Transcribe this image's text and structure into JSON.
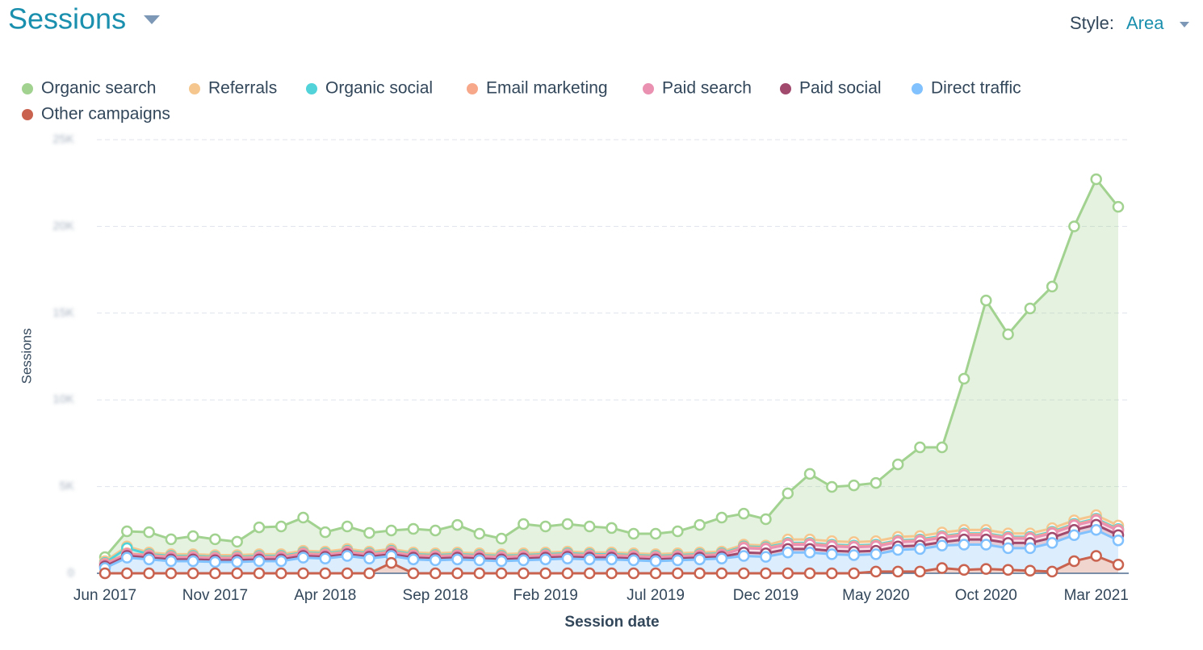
{
  "chart_data": {
    "type": "stacked_area",
    "title": "Sessions",
    "controls": {
      "style_label": "Style:",
      "style_value": "Area"
    },
    "x_label": "Session date",
    "y_label": "Sessions",
    "categories": [
      "Jun 2017",
      null,
      null,
      null,
      null,
      "Nov 2017",
      null,
      null,
      null,
      null,
      "Apr 2018",
      null,
      null,
      null,
      null,
      "Sep 2018",
      null,
      null,
      null,
      null,
      "Feb 2019",
      null,
      null,
      null,
      null,
      "Jul 2019",
      null,
      null,
      null,
      null,
      "Dec 2019",
      null,
      null,
      null,
      null,
      "May 2020",
      null,
      null,
      null,
      null,
      "Oct 2020",
      null,
      null,
      null,
      null,
      "Mar 2021",
      null
    ],
    "ylim": [
      0,
      25000
    ],
    "yticks": [
      0,
      {
        "value": 5000,
        "label": "5K"
      },
      {
        "value": 10000,
        "label": "10K"
      },
      {
        "value": 15000,
        "label": "15K"
      },
      {
        "value": 20000,
        "label": "20K"
      },
      {
        "value": 25000,
        "label": "25K"
      }
    ],
    "grid": true,
    "legend": "top-left",
    "series": [
      {
        "name": "Organic search",
        "color": "#a2d28f",
        "values": [
          230,
          870,
          1170,
          860,
          1040,
          910,
          770,
          1550,
          1600,
          1910,
          1120,
          1300,
          1080,
          1070,
          1360,
          1320,
          1590,
          1130,
          900,
          1690,
          1500,
          1590,
          1500,
          1410,
          1130,
          1180,
          1270,
          1590,
          1960,
          1790,
          1520,
          2660,
          3780,
          3130,
          3270,
          3360,
          4180,
          5110,
          4910,
          8720,
          13230,
          11480,
          12970,
          13930,
          16950,
          19370,
          18380
        ]
      },
      {
        "name": "Referrals",
        "color": "#f5c78e",
        "values": [
          100,
          100,
          100,
          100,
          100,
          100,
          100,
          100,
          100,
          100,
          100,
          100,
          100,
          100,
          100,
          100,
          100,
          100,
          100,
          100,
          100,
          100,
          100,
          100,
          100,
          100,
          100,
          100,
          100,
          100,
          100,
          200,
          200,
          200,
          200,
          200,
          200,
          200,
          200,
          200,
          200,
          200,
          200,
          200,
          200,
          200,
          200
        ]
      },
      {
        "name": "Organic social",
        "color": "#51d3d9",
        "values": [
          50,
          300,
          50,
          50,
          50,
          50,
          50,
          50,
          50,
          50,
          50,
          50,
          50,
          50,
          50,
          50,
          50,
          50,
          50,
          50,
          50,
          50,
          50,
          50,
          50,
          50,
          50,
          50,
          50,
          50,
          50,
          50,
          50,
          50,
          50,
          50,
          50,
          50,
          50,
          50,
          50,
          50,
          50,
          50,
          50,
          50,
          50
        ]
      },
      {
        "name": "Email marketing",
        "color": "#f8a88a",
        "values": [
          50,
          50,
          50,
          50,
          50,
          50,
          50,
          50,
          50,
          50,
          50,
          50,
          50,
          50,
          50,
          50,
          50,
          50,
          50,
          50,
          50,
          50,
          50,
          50,
          50,
          50,
          50,
          50,
          50,
          50,
          50,
          50,
          50,
          50,
          50,
          50,
          50,
          50,
          50,
          50,
          50,
          50,
          50,
          50,
          50,
          50,
          50
        ]
      },
      {
        "name": "Paid search",
        "color": "#ea90b1",
        "values": [
          100,
          100,
          100,
          100,
          100,
          100,
          100,
          100,
          100,
          100,
          100,
          100,
          100,
          100,
          100,
          100,
          100,
          100,
          100,
          100,
          100,
          100,
          100,
          100,
          100,
          100,
          100,
          100,
          100,
          250,
          250,
          250,
          250,
          250,
          250,
          250,
          250,
          250,
          250,
          250,
          250,
          250,
          250,
          250,
          250,
          250,
          250
        ]
      },
      {
        "name": "Paid social",
        "color": "#a24a6e",
        "values": [
          100,
          100,
          100,
          100,
          100,
          100,
          100,
          100,
          100,
          100,
          100,
          100,
          100,
          100,
          100,
          100,
          100,
          100,
          100,
          100,
          100,
          100,
          100,
          100,
          100,
          100,
          100,
          100,
          100,
          200,
          200,
          200,
          200,
          200,
          200,
          200,
          200,
          200,
          200,
          300,
          300,
          300,
          300,
          300,
          300,
          300,
          300
        ]
      },
      {
        "name": "Direct traffic",
        "color": "#81c1fd",
        "values": [
          300,
          900,
          800,
          700,
          700,
          650,
          650,
          700,
          700,
          900,
          850,
          1000,
          850,
          400,
          800,
          750,
          800,
          750,
          700,
          750,
          800,
          850,
          800,
          800,
          750,
          700,
          750,
          800,
          850,
          1000,
          950,
          1200,
          1200,
          1100,
          1050,
          1000,
          1250,
          1300,
          1300,
          1450,
          1400,
          1250,
          1300,
          1650,
          1500,
          1500,
          1400
        ]
      },
      {
        "name": "Other campaigns",
        "color": "#c9634f",
        "values": [
          0,
          0,
          0,
          0,
          0,
          0,
          0,
          0,
          0,
          0,
          0,
          0,
          0,
          600,
          0,
          0,
          0,
          0,
          0,
          0,
          0,
          0,
          0,
          0,
          0,
          0,
          0,
          0,
          0,
          0,
          0,
          0,
          0,
          0,
          0,
          100,
          100,
          100,
          300,
          200,
          250,
          200,
          150,
          100,
          700,
          1000,
          500
        ]
      }
    ]
  }
}
